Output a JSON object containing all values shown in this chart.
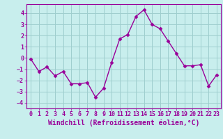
{
  "x": [
    0,
    1,
    2,
    3,
    4,
    5,
    6,
    7,
    8,
    9,
    10,
    11,
    12,
    13,
    14,
    15,
    16,
    17,
    18,
    19,
    20,
    21,
    22,
    23
  ],
  "y": [
    -0.1,
    -1.2,
    -0.8,
    -1.6,
    -1.2,
    -2.3,
    -2.3,
    -2.2,
    -3.5,
    -2.7,
    -0.4,
    1.7,
    2.1,
    3.7,
    4.3,
    3.0,
    2.6,
    1.5,
    0.4,
    -0.7,
    -0.7,
    -0.6,
    -2.5,
    -1.5
  ],
  "color": "#990099",
  "bg_color": "#c8eeed",
  "grid_color": "#9ecece",
  "xlabel": "Windchill (Refroidissement éolien,°C)",
  "ylim": [
    -4.5,
    4.8
  ],
  "xlim": [
    -0.5,
    23.5
  ],
  "yticks": [
    -4,
    -3,
    -2,
    -1,
    0,
    1,
    2,
    3,
    4
  ],
  "xticks": [
    0,
    1,
    2,
    3,
    4,
    5,
    6,
    7,
    8,
    9,
    10,
    11,
    12,
    13,
    14,
    15,
    16,
    17,
    18,
    19,
    20,
    21,
    22,
    23
  ],
  "marker": "D",
  "markersize": 2.5,
  "linewidth": 1.0,
  "xlabel_fontsize": 7.0,
  "tick_fontsize": 6.0
}
